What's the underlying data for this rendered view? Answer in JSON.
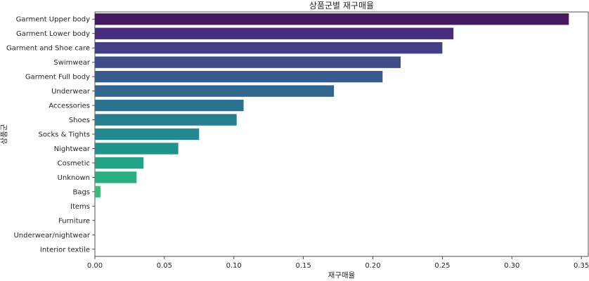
{
  "chart_data": {
    "type": "bar",
    "orientation": "horizontal",
    "title": "상품군별 재구매율",
    "xlabel": "재구매율",
    "ylabel": "상품군",
    "xlim": [
      0,
      0.355
    ],
    "x_ticks": [
      "0.00",
      "0.05",
      "0.10",
      "0.15",
      "0.20",
      "0.25",
      "0.30",
      "0.35"
    ],
    "grid": false,
    "categories": [
      "Garment Upper body",
      "Garment Lower body",
      "Garment and Shoe care",
      "Swimwear",
      "Garment Full body",
      "Underwear",
      "Accessories",
      "Shoes",
      "Socks & Tights",
      "Nightwear",
      "Cosmetic",
      "Unknown",
      "Bags",
      "Items",
      "Furniture",
      "Underwear/nightwear",
      "Interior textile"
    ],
    "values": [
      0.341,
      0.258,
      0.25,
      0.22,
      0.207,
      0.172,
      0.107,
      0.102,
      0.075,
      0.06,
      0.035,
      0.03,
      0.004,
      0,
      0,
      0,
      0
    ],
    "colors": [
      "#451a63",
      "#472d7b",
      "#433e85",
      "#3e4c8a",
      "#375a8c",
      "#31678e",
      "#2c728e",
      "#287d8e",
      "#23898e",
      "#1f948c",
      "#20a386",
      "#28ae80",
      "#3bbb75",
      "#56c667",
      "#75d054",
      "#95d840",
      "#bade28"
    ]
  }
}
